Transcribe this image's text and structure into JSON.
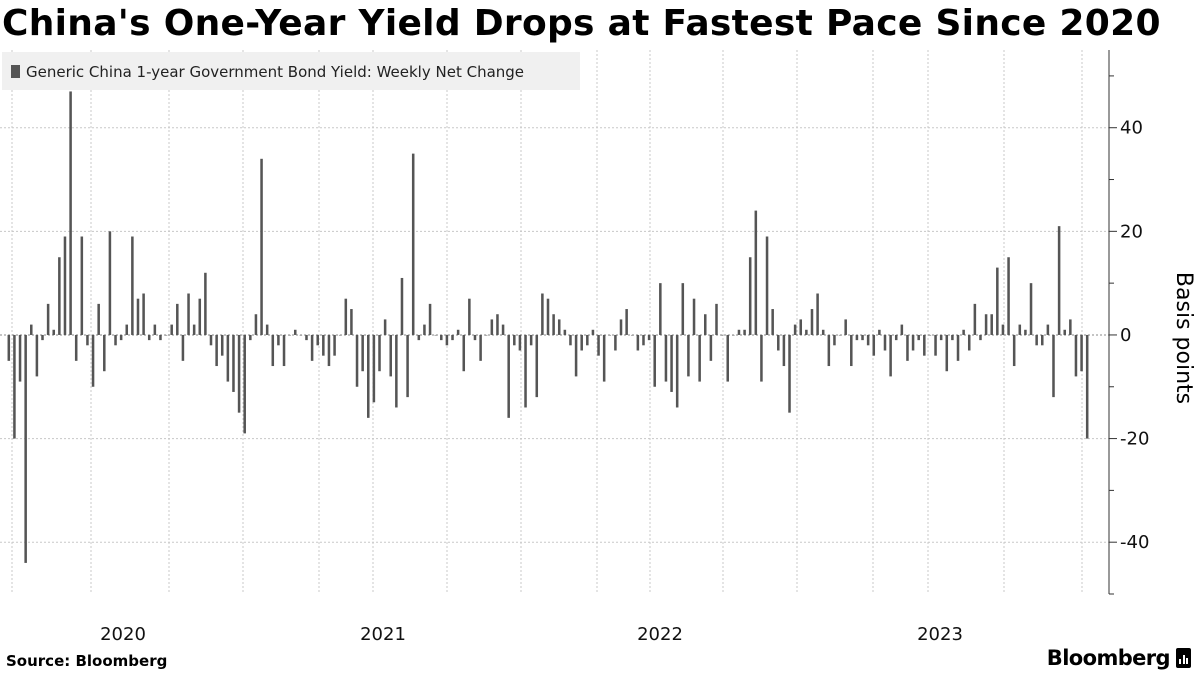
{
  "title": "China's One-Year Yield Drops at Fastest Pace Since 2020",
  "source": "Source: Bloomberg",
  "brand": "Bloomberg",
  "brand_icon": "bloomberg-chart-icon",
  "colors": {
    "bar": "#555555",
    "grid": "#c8c8c8",
    "legend_bg": "#f0f0f0"
  },
  "chart_data": {
    "type": "bar",
    "series": [
      {
        "name": "Generic China 1-year Government Bond Yield: Weekly Net Change",
        "values": [
          -5,
          -20,
          -9,
          -44,
          2,
          -8,
          -1,
          6,
          1,
          15,
          19,
          47,
          -5,
          19,
          -2,
          -10,
          6,
          -7,
          20,
          -2,
          -1,
          2,
          19,
          7,
          8,
          -1,
          2,
          -1,
          0,
          2,
          6,
          -5,
          8,
          2,
          7,
          12,
          -2,
          -6,
          -4,
          -9,
          -11,
          -15,
          -19,
          -1,
          4,
          34,
          2,
          -6,
          -2,
          -6,
          0,
          1,
          0,
          -1,
          -5,
          -2,
          -4,
          -6,
          -4,
          0,
          7,
          5,
          -10,
          -7,
          -16,
          -13,
          -7,
          3,
          -8,
          -14,
          11,
          -12,
          35,
          -1,
          2,
          6,
          0,
          -1,
          -2,
          -1,
          1,
          -7,
          7,
          -1,
          -5,
          0,
          3,
          4,
          2,
          -16,
          -2,
          -3,
          -14,
          -2,
          -12,
          8,
          7,
          4,
          3,
          1,
          -2,
          -8,
          -3,
          -2,
          1,
          -4,
          -9,
          0,
          -3,
          3,
          5,
          0,
          -3,
          -2,
          -1,
          -10,
          10,
          -9,
          -11,
          -14,
          10,
          -8,
          7,
          -9,
          4,
          -5,
          6,
          0,
          -9,
          0,
          1,
          1,
          15,
          24,
          -9,
          19,
          5,
          -3,
          -6,
          -15,
          2,
          3,
          1,
          5,
          8,
          1,
          -6,
          -2,
          0,
          3,
          -6,
          -1,
          -1,
          -2,
          -4,
          1,
          -3,
          -8,
          -1,
          2,
          -5,
          -3,
          -1,
          -4,
          0,
          -4,
          -1,
          -7,
          -1,
          -5,
          1,
          -3,
          6,
          -1,
          4,
          4,
          13,
          2,
          15,
          -6,
          2,
          1,
          10,
          -2,
          -2,
          2,
          -12,
          21,
          1,
          3,
          -8,
          -7,
          -20
        ]
      }
    ],
    "x_labels": [
      "2020",
      "2021",
      "2022",
      "2023"
    ],
    "y_ticks": [
      40,
      20,
      0,
      -20,
      -40
    ],
    "ylim": [
      -50,
      55
    ],
    "ylabel": "Basis points",
    "xlabel": "",
    "grid": true,
    "legend": "top-left",
    "y_axis_side": "right"
  }
}
